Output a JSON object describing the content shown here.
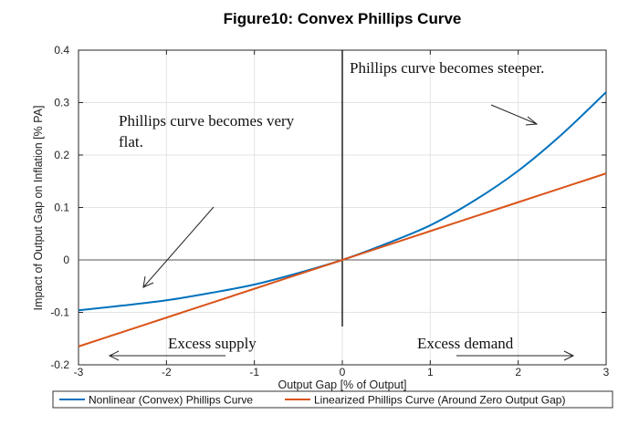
{
  "chart_data": {
    "type": "line",
    "title": "Figure10: Convex Phillips Curve",
    "xlabel": "Output Gap [% of Output]",
    "ylabel": "Impact of Output Gap on Inflation [% PA]",
    "xlim": [
      -3,
      3
    ],
    "ylim": [
      -0.2,
      0.4
    ],
    "xticks": [
      -3,
      -2,
      -1,
      0,
      1,
      2,
      3
    ],
    "xtick_labels": [
      "-3",
      "-2",
      "-1",
      "0",
      "1",
      "2",
      "3"
    ],
    "yticks": [
      -0.2,
      -0.1,
      0,
      0.1,
      0.2,
      0.3,
      0.4
    ],
    "ytick_labels": [
      "-0.2",
      "-0.1",
      "0",
      "0.1",
      "0.2",
      "0.3",
      "0.4"
    ],
    "grid": true,
    "legend_position": "bottom",
    "x": [
      -3,
      -2.5,
      -2,
      -1.5,
      -1,
      -0.5,
      0,
      0.5,
      1,
      1.5,
      2,
      2.5,
      3
    ],
    "series": [
      {
        "name": "Nonlinear (Convex) Phillips Curve",
        "color": "#0072BD",
        "values": [
          -0.096,
          -0.087,
          -0.077,
          -0.063,
          -0.047,
          -0.025,
          0,
          0.031,
          0.066,
          0.113,
          0.17,
          0.24,
          0.32
        ]
      },
      {
        "name": "Linearized Phillips Curve (Around Zero Output Gap)",
        "color": "#D95319",
        "values": [
          -0.165,
          -0.1375,
          -0.11,
          -0.0825,
          -0.055,
          -0.0275,
          0,
          0.0275,
          0.055,
          0.0825,
          0.11,
          0.1375,
          0.165
        ]
      }
    ],
    "annotations": {
      "steeper": "Phillips curve becomes steeper.",
      "flat_line1": "Phillips curve becomes very",
      "flat_line2": "flat.",
      "excess_supply": "Excess supply",
      "excess_demand": "Excess demand"
    }
  }
}
